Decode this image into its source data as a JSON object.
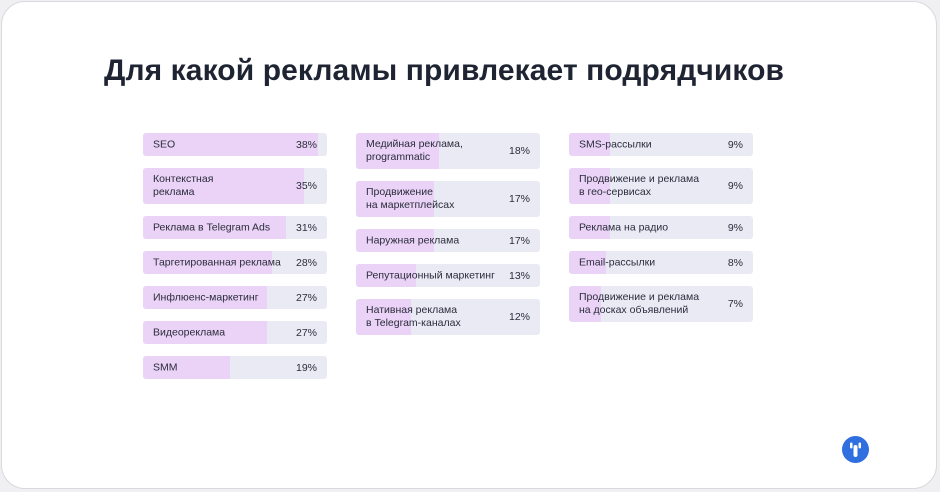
{
  "title": "Для какой рекламы привлекает подрядчиков",
  "colors": {
    "bar_track": "#eaeaf5",
    "bar_fill": "#ebd2f7",
    "text": "#2a2d3b",
    "logo": "#2f6fe0"
  },
  "chart_data": {
    "type": "bar",
    "title": "Для какой рекламы привлекает подрядчиков",
    "orientation": "horizontal",
    "unit": "%",
    "columns": [
      [
        {
          "label": "SEO",
          "value": 38,
          "value_label": "38%"
        },
        {
          "label": "Контекстная\nреклама",
          "value": 35,
          "value_label": "35%"
        },
        {
          "label": "Реклама в Telegram Ads",
          "value": 31,
          "value_label": "31%"
        },
        {
          "label": "Таргетированная реклама",
          "value": 28,
          "value_label": "28%"
        },
        {
          "label": "Инфлюенс-маркетинг",
          "value": 27,
          "value_label": "27%"
        },
        {
          "label": "Видеореклама",
          "value": 27,
          "value_label": "27%"
        },
        {
          "label": "SMM",
          "value": 19,
          "value_label": "19%"
        }
      ],
      [
        {
          "label": "Медийная реклама,\nprogrammatic",
          "value": 18,
          "value_label": "18%"
        },
        {
          "label": "Продвижение\nна маркетплейсах",
          "value": 17,
          "value_label": "17%"
        },
        {
          "label": "Наружная реклама",
          "value": 17,
          "value_label": "17%"
        },
        {
          "label": "Репутационный маркетинг",
          "value": 13,
          "value_label": "13%"
        },
        {
          "label": "Нативная реклама\nв Telegram-каналах",
          "value": 12,
          "value_label": "12%"
        }
      ],
      [
        {
          "label": "SMS-рассылки",
          "value": 9,
          "value_label": "9%"
        },
        {
          "label": "Продвижение и реклама\nв гео-сервисах",
          "value": 9,
          "value_label": "9%"
        },
        {
          "label": "Реклама на радио",
          "value": 9,
          "value_label": "9%"
        },
        {
          "label": "Email-рассылки",
          "value": 8,
          "value_label": "8%"
        },
        {
          "label": "Продвижение и реклама\nна досках объявлений",
          "value": 7,
          "value_label": "7%"
        }
      ]
    ],
    "xlim": [
      0,
      40
    ]
  }
}
